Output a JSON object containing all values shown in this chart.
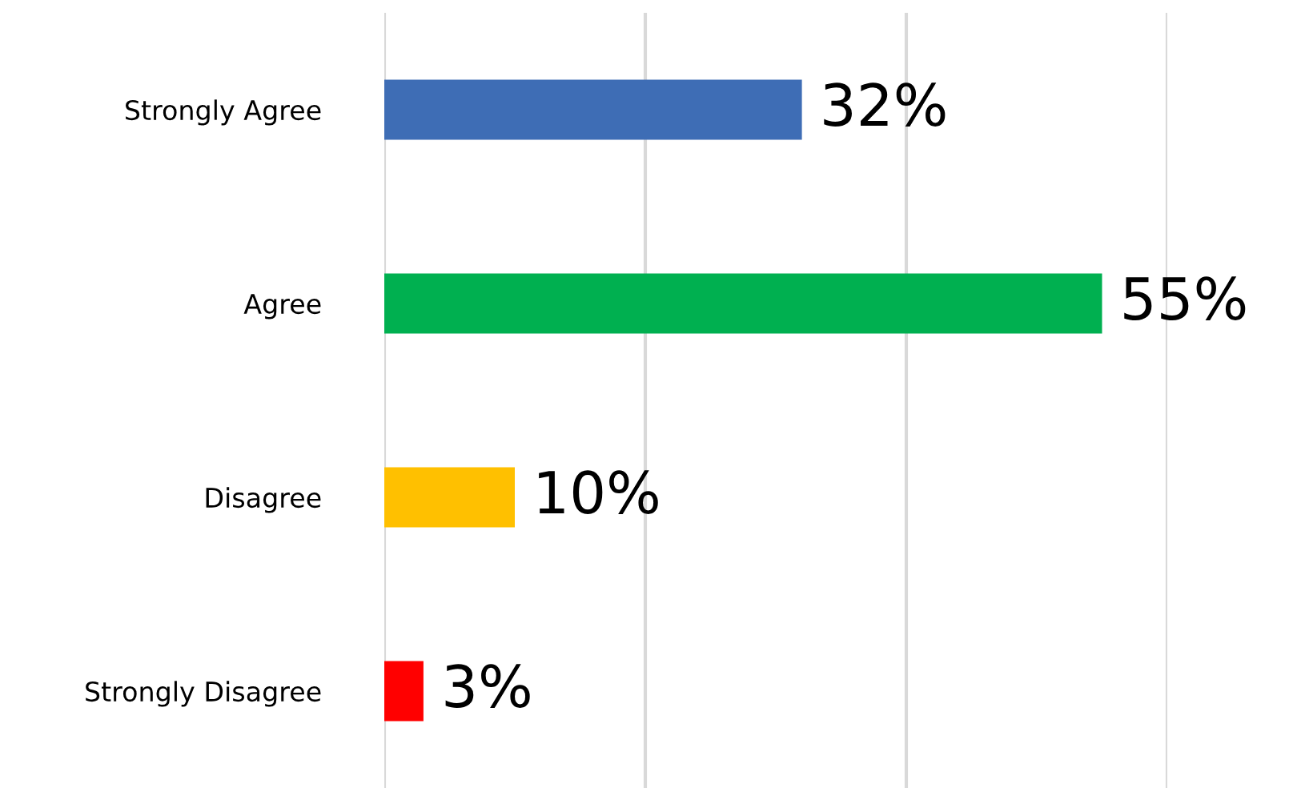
{
  "chart_data": {
    "type": "bar",
    "orientation": "horizontal",
    "categories": [
      "Strongly Agree",
      "Agree",
      "Disagree",
      "Strongly Disagree"
    ],
    "values": [
      32,
      55,
      10,
      3
    ],
    "colors": [
      "#3e6db5",
      "#00b050",
      "#ffc000",
      "#ff0000"
    ],
    "value_labels": [
      "32%",
      "55%",
      "10%",
      "3%"
    ],
    "xlim": [
      0,
      60
    ],
    "xticks": [
      {
        "value": 0,
        "label": null
      },
      {
        "value": 20,
        "label": null
      },
      {
        "value": 40,
        "label": null
      },
      {
        "value": 60,
        "label": null
      }
    ],
    "tick_labels": "y",
    "grid": "x",
    "legend": false
  }
}
